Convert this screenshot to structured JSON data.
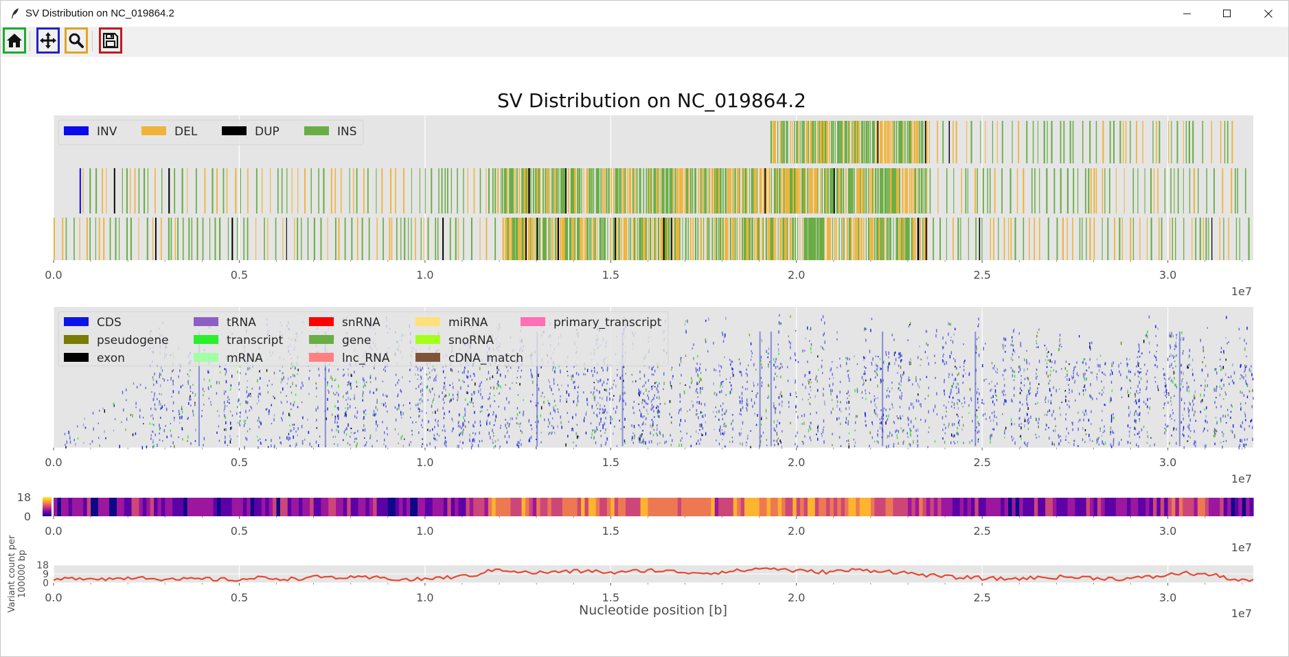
{
  "window": {
    "title": "SV Distribution on NC_019864.2",
    "controls": [
      "minimize-icon",
      "maximize-icon",
      "close-icon"
    ]
  },
  "toolbar": {
    "tools": [
      {
        "name": "home-button",
        "icon": "home-icon",
        "border_color": "#1aaa2e"
      },
      {
        "name": "pan-button",
        "icon": "move-arrows-icon",
        "border_color": "#1f22c4"
      },
      {
        "name": "zoom-button",
        "icon": "magnifier-icon",
        "border_color": "#e2a31e"
      },
      {
        "name": "save-button",
        "icon": "floppy-disk-icon",
        "border_color": "#c0191c"
      }
    ]
  },
  "figure": {
    "title": "SV Distribution on NC_019864.2",
    "x_ticks": [
      "0.0",
      "0.5",
      "1.0",
      "1.5",
      "2.0",
      "2.5",
      "3.0"
    ],
    "x_multiplier": "1e7",
    "xlabel": "Nucleotide position [b]",
    "ylabel_line1": "Variant count per",
    "ylabel_line2": "100000 bp"
  },
  "chart_data": [
    {
      "type": "bar",
      "panel": "sv-tracks",
      "description_source": "stacked event tracks",
      "legend": [
        {
          "label": "INV",
          "color": "#0a0aef"
        },
        {
          "label": "DEL",
          "color": "#f0b33a"
        },
        {
          "label": "DUP",
          "color": "#000000"
        },
        {
          "label": "INS",
          "color": "#6aad45"
        }
      ],
      "xlim": [
        0,
        32300000
      ],
      "track_extents": [
        {
          "track": 1,
          "start": 19300000,
          "end": 31900000
        },
        {
          "track": 2,
          "start": 700000,
          "end": 32100000
        },
        {
          "track": 3,
          "start": 0,
          "end": 32200000
        }
      ],
      "dense_region": [
        12000000,
        23500000
      ]
    },
    {
      "type": "bar",
      "panel": "annotation-tracks",
      "legend": [
        {
          "label": "CDS",
          "color": "#0b15e8"
        },
        {
          "label": "pseudogene",
          "color": "#7a7a07"
        },
        {
          "label": "exon",
          "color": "#000000"
        },
        {
          "label": "tRNA",
          "color": "#8d5fc2"
        },
        {
          "label": "transcript",
          "color": "#2bef2b"
        },
        {
          "label": "mRNA",
          "color": "#a3ffa3"
        },
        {
          "label": "snRNA",
          "color": "#ff0000"
        },
        {
          "label": "gene",
          "color": "#6aad45"
        },
        {
          "label": "lnc_RNA",
          "color": "#ff8080"
        },
        {
          "label": "miRNA",
          "color": "#ffe07a"
        },
        {
          "label": "snoRNA",
          "color": "#a4ff1c"
        },
        {
          "label": "cDNA_match",
          "color": "#80543a"
        },
        {
          "label": "primary_transcript",
          "color": "#ff6fb5"
        }
      ],
      "xlim": [
        0,
        32300000
      ]
    },
    {
      "type": "heatmap",
      "panel": "density-heatmap",
      "colormap": "plasma",
      "colorbar_ticks": [
        "18",
        "0"
      ],
      "vmin": 0,
      "vmax": 18,
      "bin_size": 100000,
      "xlim": [
        0,
        32300000
      ]
    },
    {
      "type": "line",
      "panel": "variant-count",
      "color": "#e24a33",
      "bin_size": 100000,
      "ylim": [
        0,
        18
      ],
      "y_ticks": [
        "18",
        "9",
        "0"
      ],
      "x": [
        0,
        800000,
        1600000,
        2400000,
        3200000,
        4000000,
        4800000,
        5600000,
        6400000,
        7200000,
        8000000,
        8800000,
        9600000,
        10400000,
        11200000,
        12000000,
        12800000,
        13600000,
        14400000,
        15200000,
        16000000,
        16800000,
        17600000,
        18400000,
        19200000,
        20000000,
        20800000,
        21600000,
        22400000,
        23200000,
        24000000,
        24800000,
        25600000,
        26400000,
        27200000,
        28000000,
        28800000,
        29600000,
        30400000,
        31200000,
        32000000
      ],
      "values": [
        3,
        5,
        4,
        6,
        3,
        4,
        3,
        5,
        4,
        6,
        5,
        5,
        3,
        5,
        7,
        14,
        10,
        11,
        12,
        10,
        13,
        11,
        10,
        12,
        15,
        12,
        11,
        13,
        12,
        9,
        6,
        5,
        4,
        5,
        6,
        5,
        4,
        6,
        10,
        8,
        2
      ]
    }
  ]
}
